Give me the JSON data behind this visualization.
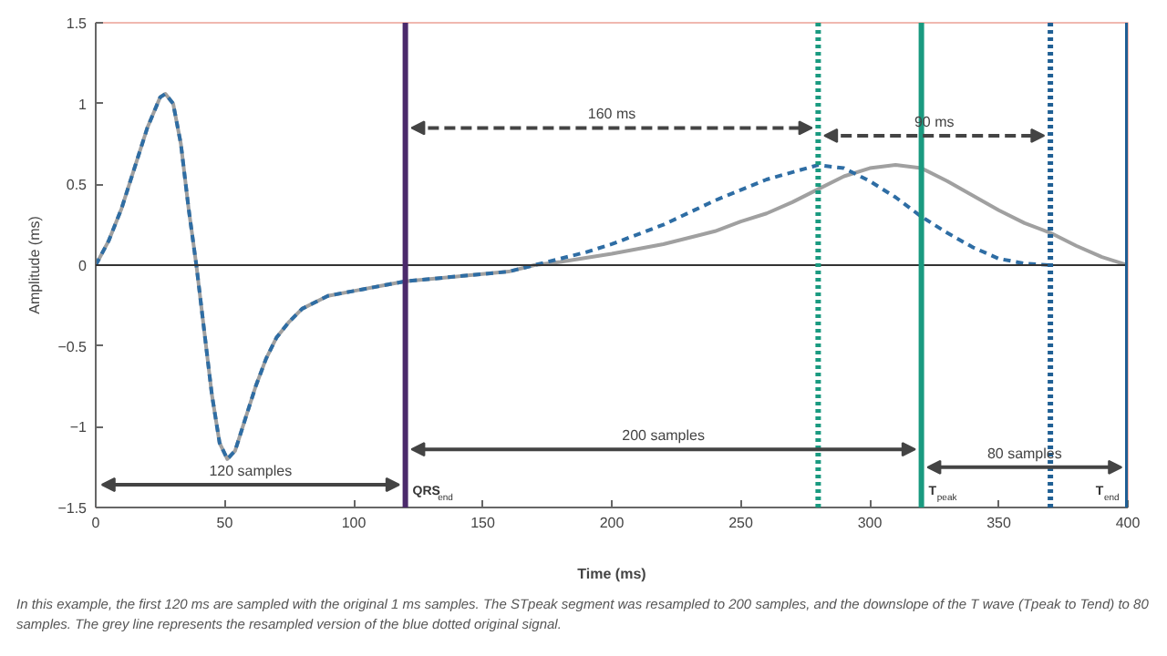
{
  "chart_data": {
    "type": "line",
    "xlabel": "Time (ms)",
    "ylabel": "Amplitude (ms)",
    "xlim": [
      0,
      400
    ],
    "ylim": [
      -1.5,
      1.5
    ],
    "xticks": [
      0,
      50,
      100,
      150,
      200,
      250,
      300,
      350,
      400
    ],
    "yticks": [
      -1.5,
      -1,
      -0.5,
      0,
      0.5,
      1,
      1.5
    ],
    "grid": false,
    "marker": "none",
    "series": [
      {
        "color": "#a0a0a0",
        "line_style": "solid",
        "x": [
          0,
          5,
          10,
          15,
          20,
          25,
          27,
          30,
          33,
          36,
          39,
          42,
          45,
          48,
          51,
          54,
          58,
          62,
          66,
          70,
          75,
          80,
          90,
          100,
          110,
          120,
          140,
          160,
          170,
          180,
          200,
          220,
          240,
          250,
          260,
          270,
          280,
          290,
          300,
          310,
          320,
          330,
          340,
          350,
          360,
          370,
          380,
          390,
          400
        ],
        "values": [
          0,
          0.15,
          0.35,
          0.6,
          0.85,
          1.04,
          1.06,
          1.0,
          0.75,
          0.35,
          0,
          -0.4,
          -0.8,
          -1.1,
          -1.2,
          -1.15,
          -0.95,
          -0.75,
          -0.58,
          -0.45,
          -0.35,
          -0.27,
          -0.19,
          -0.16,
          -0.13,
          -0.1,
          -0.07,
          -0.04,
          0,
          0.02,
          0.07,
          0.13,
          0.21,
          0.27,
          0.32,
          0.39,
          0.47,
          0.55,
          0.6,
          0.62,
          0.6,
          0.52,
          0.43,
          0.34,
          0.26,
          0.2,
          0.12,
          0.05,
          0
        ]
      },
      {
        "color": "#2e6da4",
        "line_style": "dashed",
        "x": [
          0,
          5,
          10,
          15,
          20,
          25,
          27,
          30,
          33,
          36,
          39,
          42,
          45,
          48,
          51,
          54,
          58,
          62,
          66,
          70,
          75,
          80,
          90,
          100,
          110,
          120,
          140,
          160,
          170,
          180,
          190,
          200,
          220,
          240,
          260,
          280,
          290,
          300,
          310,
          320,
          330,
          340,
          350,
          360,
          370
        ],
        "values": [
          0,
          0.15,
          0.35,
          0.6,
          0.85,
          1.04,
          1.06,
          1.0,
          0.75,
          0.35,
          0,
          -0.4,
          -0.8,
          -1.1,
          -1.2,
          -1.15,
          -0.95,
          -0.75,
          -0.58,
          -0.45,
          -0.35,
          -0.27,
          -0.19,
          -0.16,
          -0.13,
          -0.1,
          -0.07,
          -0.04,
          0,
          0.04,
          0.08,
          0.13,
          0.25,
          0.4,
          0.53,
          0.62,
          0.6,
          0.52,
          0.42,
          0.3,
          0.2,
          0.11,
          0.04,
          0.01,
          0
        ]
      }
    ],
    "ref_lines": [
      {
        "axis": "y",
        "value": 0,
        "color": "#333333",
        "line_style": "solid"
      },
      {
        "axis": "x",
        "value": 120,
        "label": "QRS$_{end}$",
        "color": "#4b2a6b",
        "line_style": "solid"
      },
      {
        "axis": "x",
        "value": 320,
        "label": "T$_{peak}$",
        "color": "#1a9a80",
        "line_style": "solid"
      },
      {
        "axis": "x",
        "value": 400,
        "label": "T$_{end}$",
        "color": "#1f5f94",
        "line_style": "solid"
      },
      {
        "axis": "x",
        "value": 280,
        "color": "#1a9a80",
        "line_style": "dotted"
      },
      {
        "axis": "x",
        "value": 370,
        "color": "#1f5f94",
        "line_style": "dotted"
      }
    ],
    "annotations": [
      "160 ms",
      "90 ms",
      "120 samples",
      "200 samples",
      "80 samples",
      "In this example, the first 120 ms are sampled with the original 1 ms samples. The STpeak segment was resampled to 200 samples, and the downslope of the T wave (Tpeak to Tend) to 80 samples. The grey line represents the resampled version of the blue dotted original signal."
    ]
  }
}
